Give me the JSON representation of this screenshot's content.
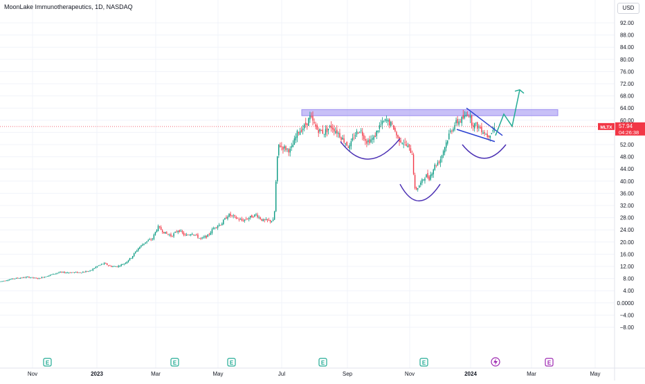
{
  "title": "MoonLake Immunotherapeutics, 1D, NASDAQ",
  "currency": "USD",
  "colors": {
    "up": "#089981",
    "down": "#f23645",
    "zone": "#9b8cf0",
    "drawing_blue": "#2a3fd0",
    "drawing_purple": "#4a2fb3",
    "projection": "#22ab94",
    "price_line": "#f23645",
    "earnings": "#22ab94",
    "dividend": "#9c27b0"
  },
  "price_badge": {
    "ticker": "MLTX",
    "price": "57.94",
    "countdown": "04:26:38"
  },
  "chart_data": {
    "type": "candlestick",
    "y_ticks": [
      "92.00",
      "88.00",
      "84.00",
      "80.00",
      "76.00",
      "72.00",
      "68.00",
      "64.00",
      "60.00",
      "56.00",
      "52.00",
      "48.00",
      "44.00",
      "40.00",
      "36.00",
      "32.00",
      "28.00",
      "24.00",
      "20.00",
      "16.00",
      "12.00",
      "8.00",
      "4.00",
      "0.0000",
      "−4.00",
      "−8.00"
    ],
    "ylim": [
      -10,
      95
    ],
    "x_ticks": [
      {
        "label": "Nov",
        "bold": false
      },
      {
        "label": "2023",
        "bold": true
      },
      {
        "label": "Mar",
        "bold": false
      },
      {
        "label": "May",
        "bold": false
      },
      {
        "label": "Jul",
        "bold": false
      },
      {
        "label": "Sep",
        "bold": false
      },
      {
        "label": "Nov",
        "bold": false
      },
      {
        "label": "2024",
        "bold": true
      },
      {
        "label": "Mar",
        "bold": false
      },
      {
        "label": "May",
        "bold": false
      }
    ],
    "price_path": [
      [
        0,
        7
      ],
      [
        20,
        8
      ],
      [
        40,
        8.5
      ],
      [
        55,
        8
      ],
      [
        70,
        9
      ],
      [
        85,
        10
      ],
      [
        100,
        10
      ],
      [
        115,
        10
      ],
      [
        130,
        10.5
      ],
      [
        140,
        12
      ],
      [
        150,
        13
      ],
      [
        160,
        12
      ],
      [
        170,
        12
      ],
      [
        180,
        13
      ],
      [
        190,
        15
      ],
      [
        200,
        18
      ],
      [
        210,
        20
      ],
      [
        220,
        21
      ],
      [
        228,
        25
      ],
      [
        238,
        23
      ],
      [
        248,
        22
      ],
      [
        258,
        24
      ],
      [
        268,
        22
      ],
      [
        278,
        23
      ],
      [
        290,
        21
      ],
      [
        300,
        22
      ],
      [
        310,
        25
      ],
      [
        320,
        26
      ],
      [
        330,
        29
      ],
      [
        340,
        28
      ],
      [
        350,
        27
      ],
      [
        360,
        28
      ],
      [
        370,
        29
      ],
      [
        380,
        27
      ],
      [
        388,
        27
      ],
      [
        396,
        27
      ],
      [
        399,
        41
      ],
      [
        402,
        52
      ],
      [
        410,
        51
      ],
      [
        420,
        50
      ],
      [
        430,
        56
      ],
      [
        440,
        58
      ],
      [
        448,
        61
      ],
      [
        458,
        57
      ],
      [
        468,
        56
      ],
      [
        478,
        58
      ],
      [
        488,
        56
      ],
      [
        498,
        53
      ],
      [
        505,
        51
      ],
      [
        512,
        55
      ],
      [
        520,
        57
      ],
      [
        530,
        53
      ],
      [
        540,
        54
      ],
      [
        548,
        58
      ],
      [
        558,
        60
      ],
      [
        568,
        58
      ],
      [
        575,
        54
      ],
      [
        582,
        53
      ],
      [
        590,
        51
      ],
      [
        596,
        49
      ],
      [
        599,
        37
      ],
      [
        604,
        38
      ],
      [
        610,
        40
      ],
      [
        615,
        42
      ],
      [
        620,
        41
      ],
      [
        628,
        45
      ],
      [
        636,
        47
      ],
      [
        642,
        51
      ],
      [
        650,
        56
      ],
      [
        658,
        59
      ],
      [
        665,
        60
      ],
      [
        672,
        61
      ],
      [
        676,
        63
      ],
      [
        682,
        59
      ],
      [
        690,
        58
      ],
      [
        696,
        57
      ],
      [
        704,
        55
      ],
      [
        710,
        56
      ],
      [
        716,
        58
      ]
    ],
    "last_price": 57.94,
    "annotations": {
      "resistance_zone": [
        61.5,
        63.5
      ],
      "projection_path": [
        [
          716,
          55
        ],
        [
          728,
          62
        ],
        [
          740,
          58
        ],
        [
          751,
          70
        ]
      ],
      "earnings_markers": 6,
      "dividend_markers": 1
    }
  }
}
